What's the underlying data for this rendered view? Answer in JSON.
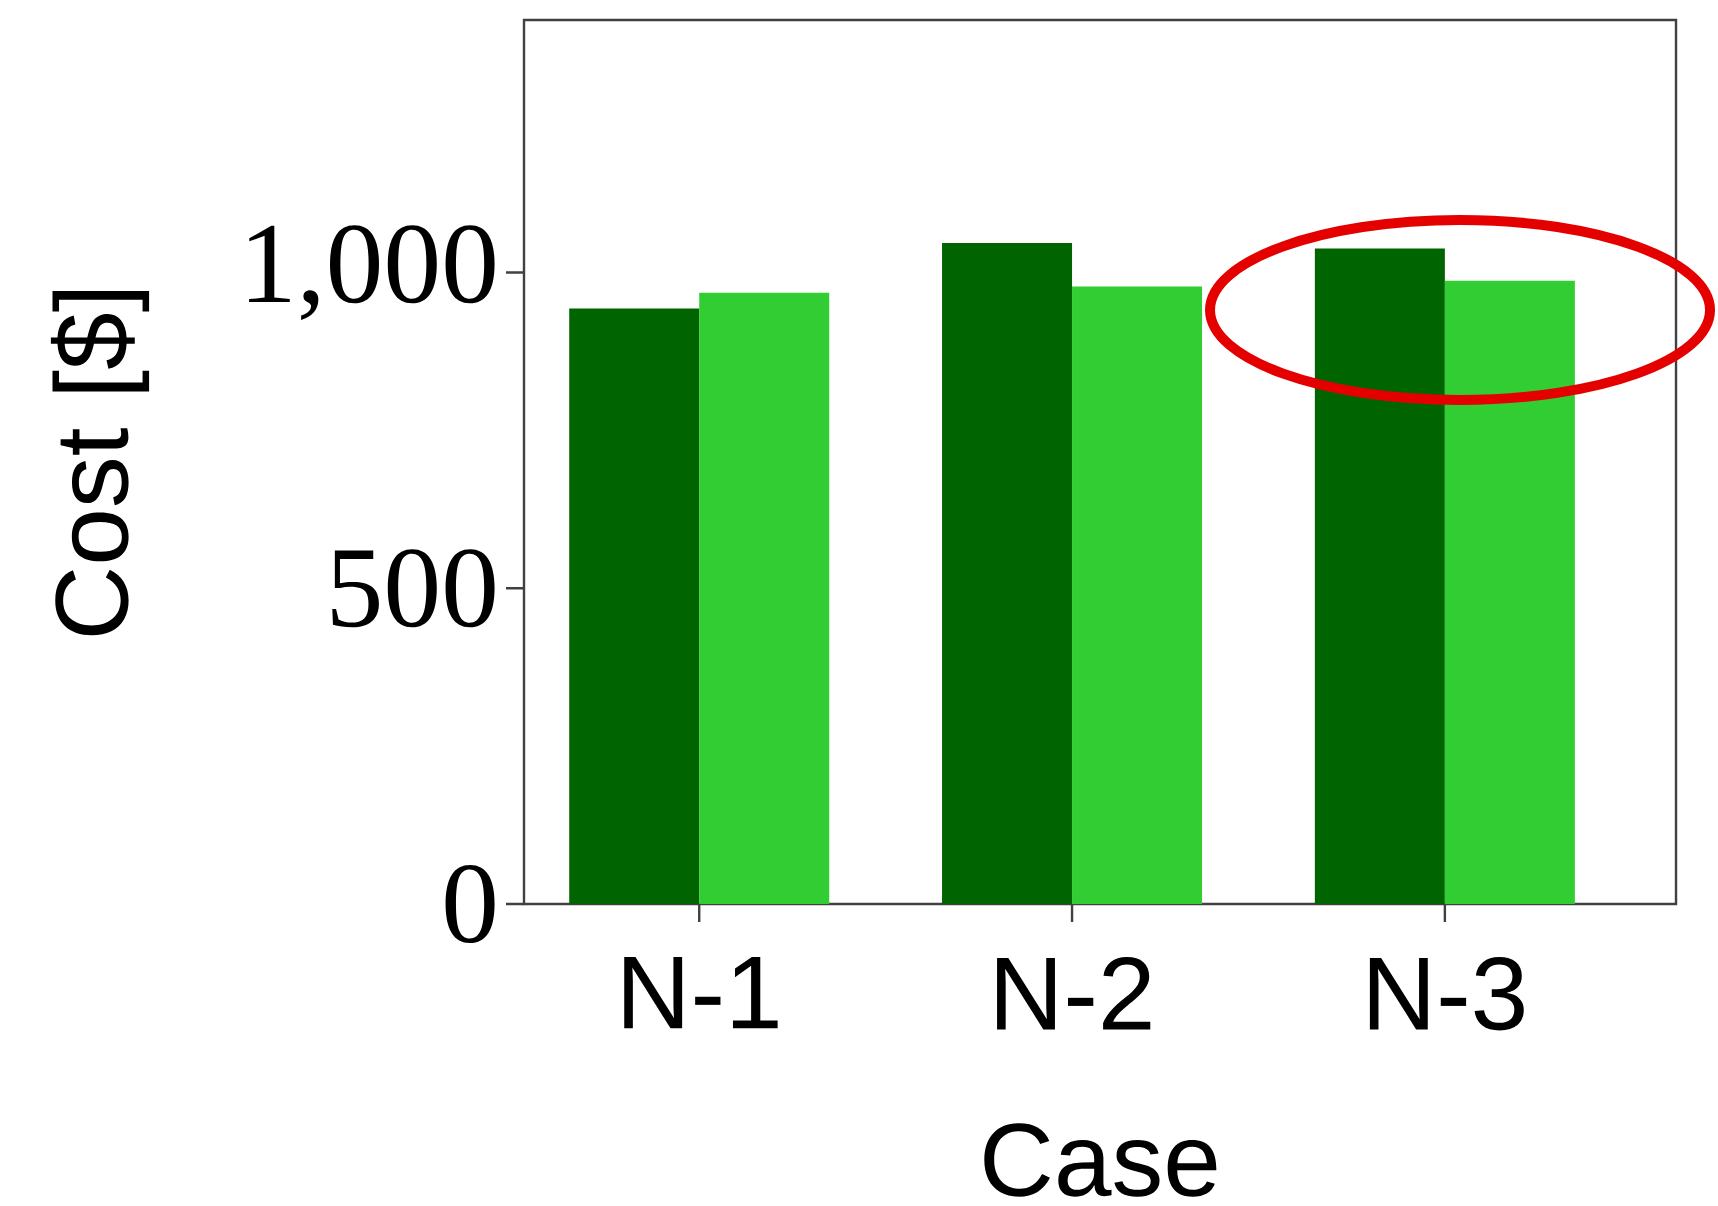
{
  "chart_data": {
    "type": "bar",
    "xlabel": "Case",
    "ylabel": "Cost [$]",
    "categories": [
      "N-1",
      "N-2",
      "N-3"
    ],
    "series": [
      {
        "color": "#006400",
        "values": [
          943,
          1047,
          1038
        ]
      },
      {
        "color": "#32cd32",
        "values": [
          968,
          978,
          987
        ]
      }
    ],
    "ylim": [
      0,
      1400
    ],
    "yticks": [
      0,
      500,
      {
        "value": 1000,
        "label": "1,000"
      }
    ],
    "grid": false
  }
}
